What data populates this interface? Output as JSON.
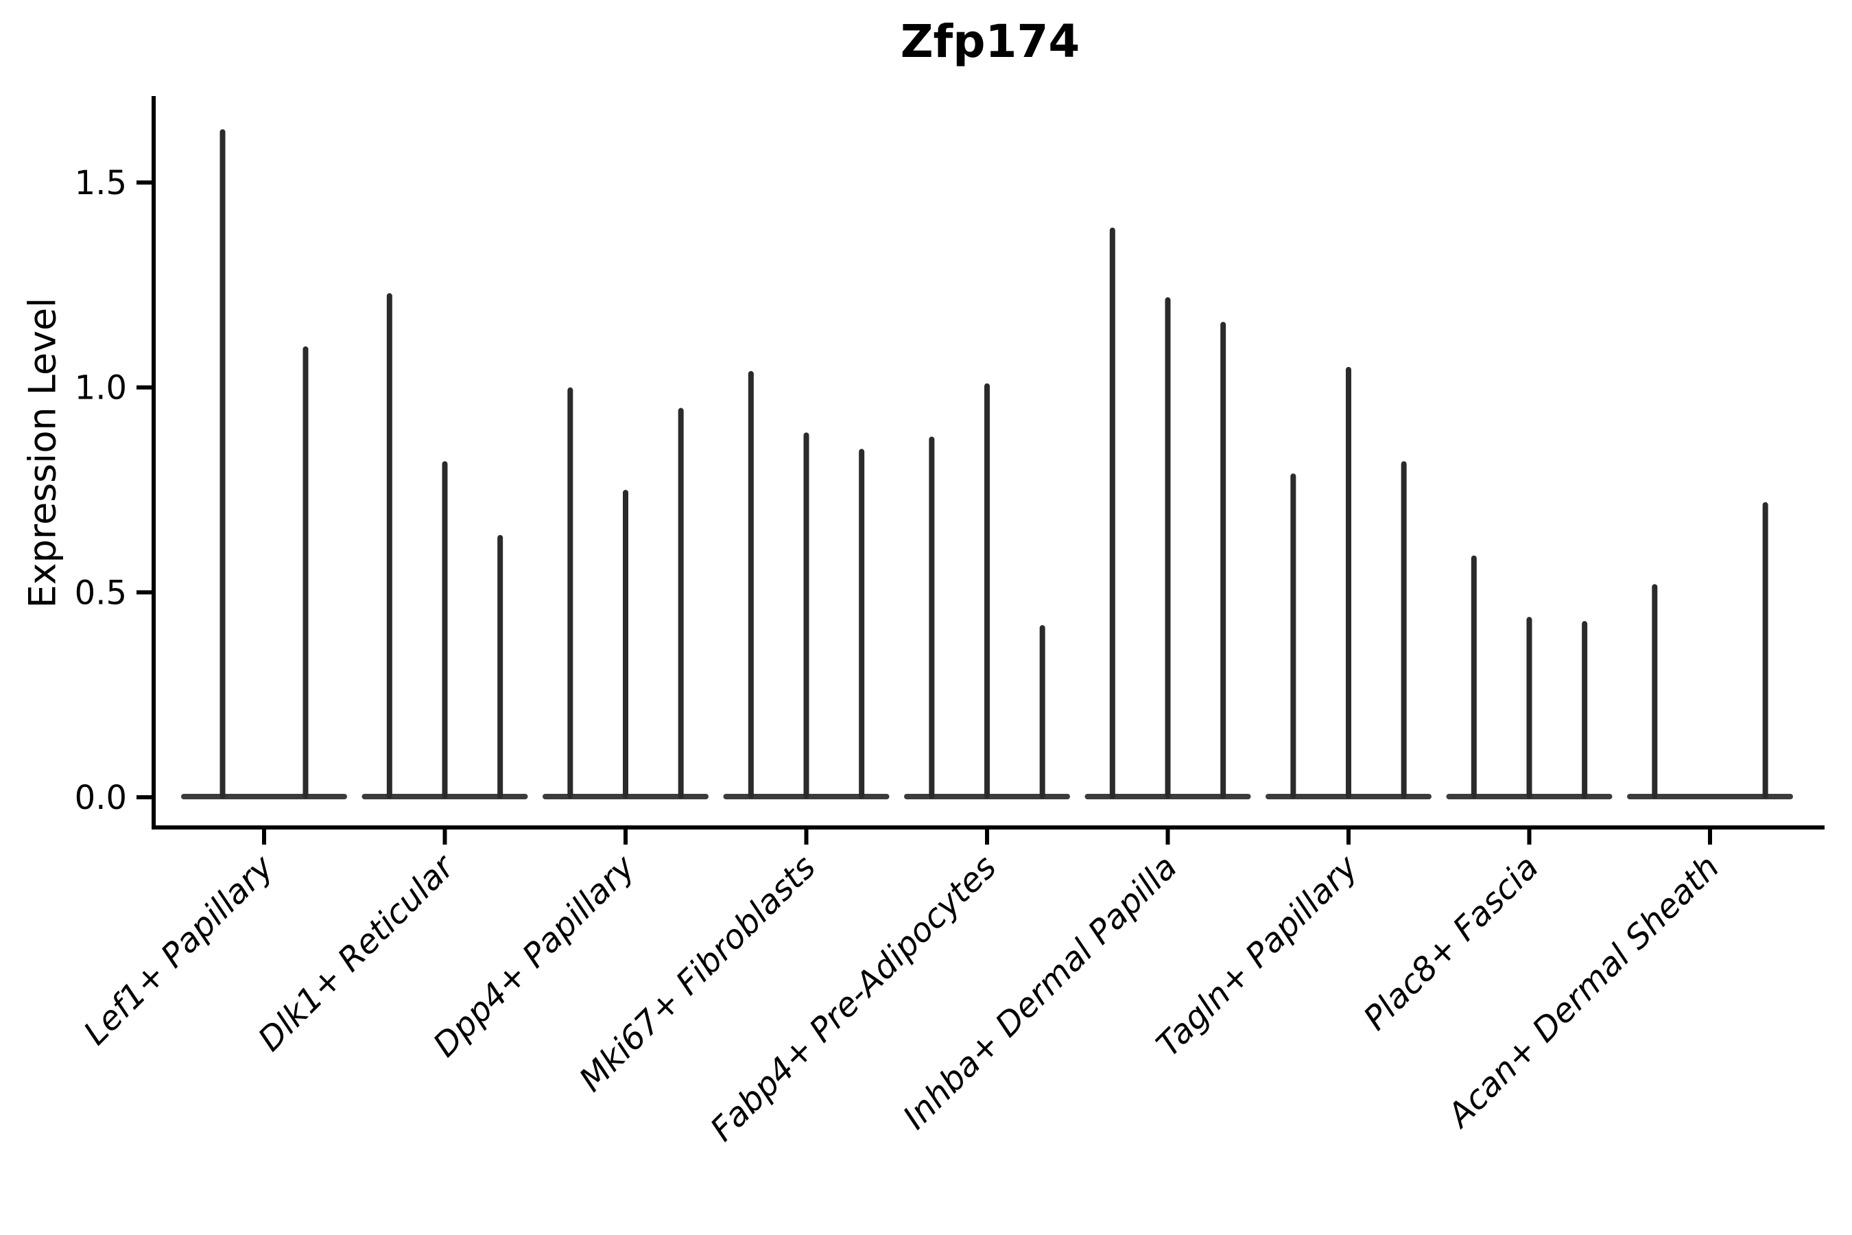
{
  "figure": {
    "background_color": "#ffffff",
    "axis_color": "#000000",
    "violin_color": "#2b2b2b",
    "violin_base_color": "#3c3c3c"
  },
  "chart_data": {
    "type": "violin",
    "title": "Zfp174",
    "xlabel": "",
    "ylabel": "Expression Level",
    "ylim": [
      0,
      1.71
    ],
    "yticks": [
      0.0,
      0.5,
      1.0,
      1.5
    ],
    "ytick_labels": [
      "0.0",
      "0.5",
      "1.0",
      "1.5"
    ],
    "grid": false,
    "legend_position": "none",
    "categories": [
      "Lef1+ Papillary",
      "Dlk1+ Reticular",
      "Dpp4+ Papillary",
      "Mki67+ Fibroblasts",
      "Fabp4+ Pre-Adipocytes",
      "Inhba+ Dermal Papilla",
      "Tagln+ Papillary",
      "Plac8+ Fascia",
      "Acan+ Dermal Sheath"
    ],
    "series": [
      {
        "category": "Lef1+ Papillary",
        "violin_maxima": [
          1.63,
          1.1
        ]
      },
      {
        "category": "Dlk1+ Reticular",
        "violin_maxima": [
          1.23,
          0.82,
          0.64
        ]
      },
      {
        "category": "Dpp4+ Papillary",
        "violin_maxima": [
          1.0,
          0.75,
          0.95
        ]
      },
      {
        "category": "Mki67+ Fibroblasts",
        "violin_maxima": [
          1.04,
          0.89,
          0.85
        ]
      },
      {
        "category": "Fabp4+ Pre-Adipocytes",
        "violin_maxima": [
          0.88,
          1.01,
          0.42
        ]
      },
      {
        "category": "Inhba+ Dermal Papilla",
        "violin_maxima": [
          1.39,
          1.22,
          1.16
        ]
      },
      {
        "category": "Tagln+ Papillary",
        "violin_maxima": [
          0.79,
          1.05,
          0.82
        ]
      },
      {
        "category": "Plac8+ Fascia",
        "violin_maxima": [
          0.59,
          0.44,
          0.43
        ]
      },
      {
        "category": "Acan+ Dermal Sheath",
        "violin_maxima": [
          0.52,
          0,
          0.72
        ]
      }
    ],
    "notes": "Each violin is rendered as a flat density base at expression 0 with a thin spike rising to its maximum expression value."
  }
}
